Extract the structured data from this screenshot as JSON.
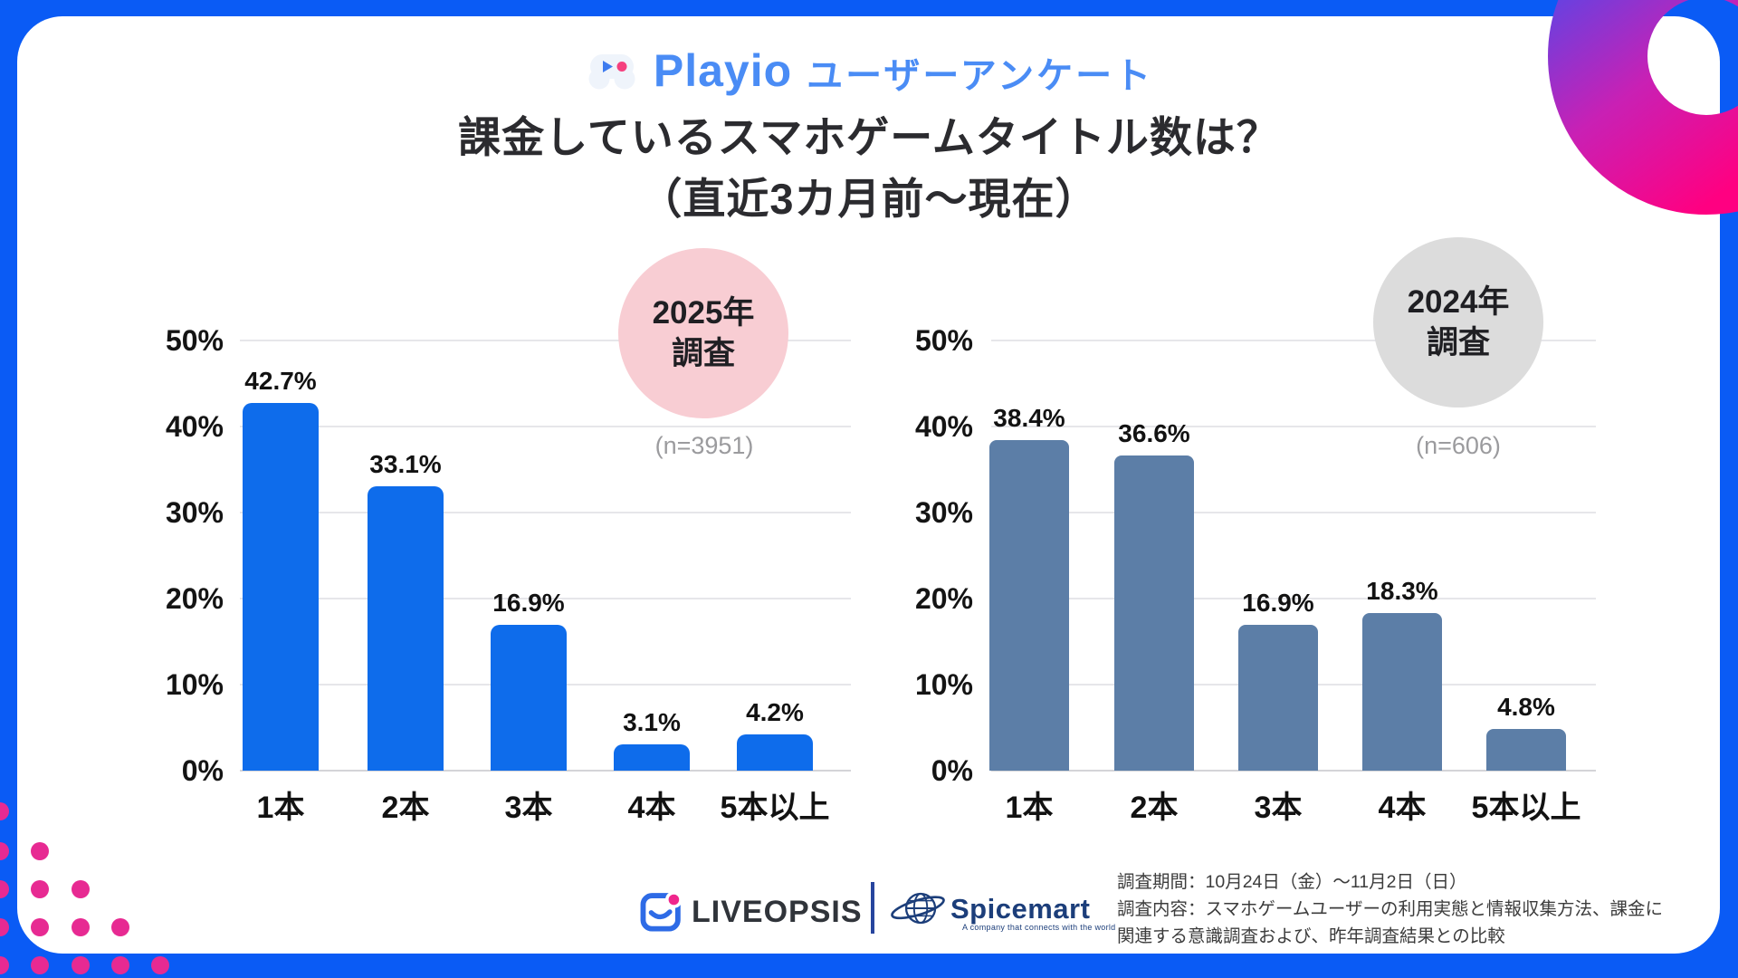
{
  "page": {
    "frame_color": "#0A5BF5",
    "card_color": "#FFFFFF",
    "accent_pink": "#E72A92"
  },
  "header": {
    "brand": "Playio",
    "brand_suffix": "ユーザーアンケート",
    "brand_color": "#4A8CF5",
    "title_line1": "課金しているスマホゲームタイトル数は？",
    "title_line2": "（直近3カ月前〜現在）"
  },
  "chart_data": [
    {
      "type": "bar",
      "title": "2025年調査",
      "badge": {
        "line1": "2025年",
        "line2": "調査",
        "color": "#F8CDD3"
      },
      "sample_label": "(n=3951)",
      "categories": [
        "1本",
        "2本",
        "3本",
        "4本",
        "5本以上"
      ],
      "values": [
        42.7,
        33.1,
        16.9,
        3.1,
        4.2
      ],
      "value_labels": [
        "42.7%",
        "33.1%",
        "16.9%",
        "3.1%",
        "4.2%"
      ],
      "bar_color": "#0E6CEB",
      "ylim": [
        0,
        50
      ],
      "yticks": [
        "0%",
        "10%",
        "20%",
        "30%",
        "40%",
        "50%"
      ],
      "grid": true,
      "xlabel": "",
      "ylabel": ""
    },
    {
      "type": "bar",
      "title": "2024年調査",
      "badge": {
        "line1": "2024年",
        "line2": "調査",
        "color": "#DCDCDC"
      },
      "sample_label": "(n=606)",
      "categories": [
        "1本",
        "2本",
        "3本",
        "4本",
        "5本以上"
      ],
      "values": [
        38.4,
        36.6,
        16.9,
        18.3,
        4.8
      ],
      "value_labels": [
        "38.4%",
        "36.6%",
        "16.9%",
        "18.3%",
        "4.8%"
      ],
      "bar_color": "#5C7EA7",
      "ylim": [
        0,
        50
      ],
      "yticks": [
        "0%",
        "10%",
        "20%",
        "30%",
        "40%",
        "50%"
      ],
      "grid": true,
      "xlabel": "",
      "ylabel": ""
    }
  ],
  "footer": {
    "logo1": "LIVEOPSIS",
    "logo2": "Spicemart",
    "logo2_tagline": "A company that connects with the world",
    "note_lines": [
      "調査期間：10月24日（金）〜11月2日（日）",
      "調査内容：スマホゲームユーザーの利用実態と情報収集方法、課金に",
      "関連する意識調査および、昨年調査結果との比較"
    ]
  }
}
